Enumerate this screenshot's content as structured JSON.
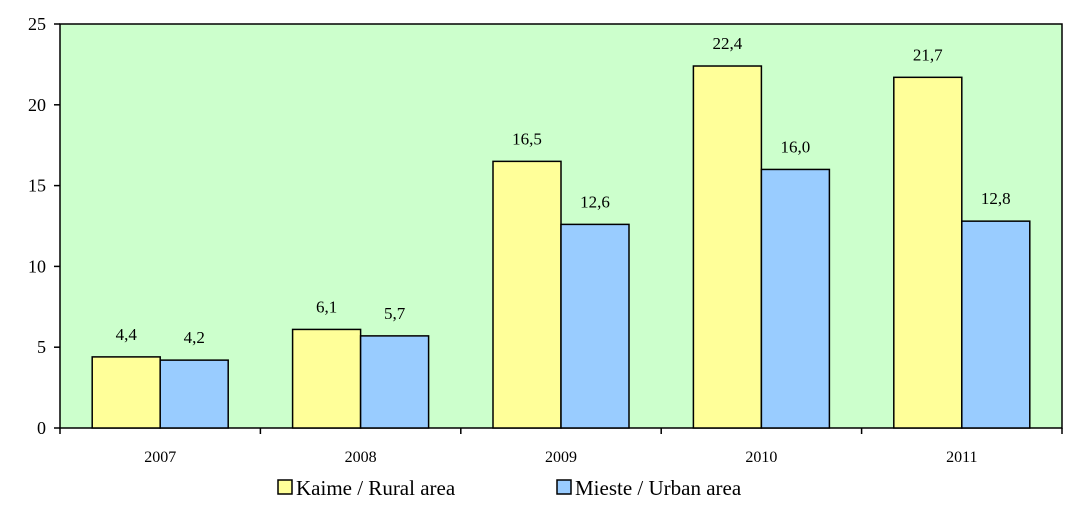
{
  "chart_data": {
    "type": "bar",
    "categories": [
      "2007",
      "2008",
      "2009",
      "2010",
      "2011"
    ],
    "series": [
      {
        "name": "Kaime / Rural area",
        "values": [
          4.4,
          6.1,
          16.5,
          22.4,
          21.7
        ],
        "labels": [
          "4,4",
          "6,1",
          "16,5",
          "22,4",
          "21,7"
        ],
        "color": "#ffff99"
      },
      {
        "name": "Mieste / Urban area",
        "values": [
          4.2,
          5.7,
          12.6,
          16.0,
          12.8
        ],
        "labels": [
          "4,2",
          "5,7",
          "12,6",
          "16,0",
          "12,8"
        ],
        "color": "#99ccff"
      }
    ],
    "ylim": [
      0,
      25
    ],
    "yticks": [
      0,
      5,
      10,
      15,
      20,
      25
    ],
    "plot_background": "#ccffcc",
    "grid": false,
    "legend_position": "bottom",
    "title": "",
    "xlabel": "",
    "ylabel": ""
  }
}
